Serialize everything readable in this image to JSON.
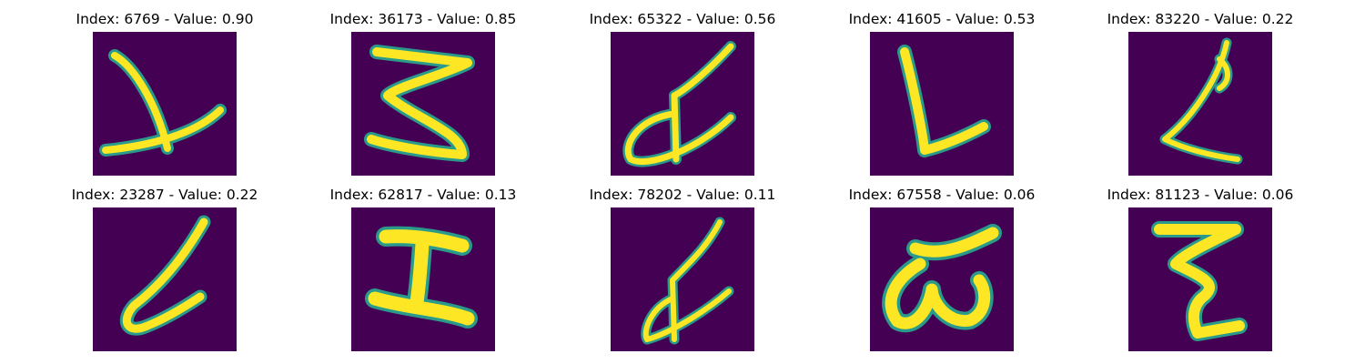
{
  "figure": {
    "colors": {
      "background": "#440154",
      "stroke_mid": "#2a9a8a",
      "stroke_core": "#fde725"
    },
    "samples": [
      {
        "title": "Index: 6769 - Value: 0.90",
        "glyph": "upside-down-y-icon"
      },
      {
        "title": "Index: 36173 - Value: 0.85",
        "glyph": "reversed-e-icon"
      },
      {
        "title": "Index: 65322 - Value: 0.56",
        "glyph": "looped-letter-icon"
      },
      {
        "title": "Index: 41605 - Value: 0.53",
        "glyph": "letter-l-icon"
      },
      {
        "title": "Index: 83220 - Value: 0.22",
        "glyph": "slanted-l-icon"
      },
      {
        "title": "Index: 23287 - Value: 0.22",
        "glyph": "looped-b-icon"
      },
      {
        "title": "Index: 62817 - Value: 0.13",
        "glyph": "letter-i-icon"
      },
      {
        "title": "Index: 78202 - Value: 0.11",
        "glyph": "looped-letter-icon"
      },
      {
        "title": "Index: 67558 - Value: 0.06",
        "glyph": "w-shape-icon"
      },
      {
        "title": "Index: 81123 - Value: 0.06",
        "glyph": "letter-z-icon"
      }
    ]
  }
}
